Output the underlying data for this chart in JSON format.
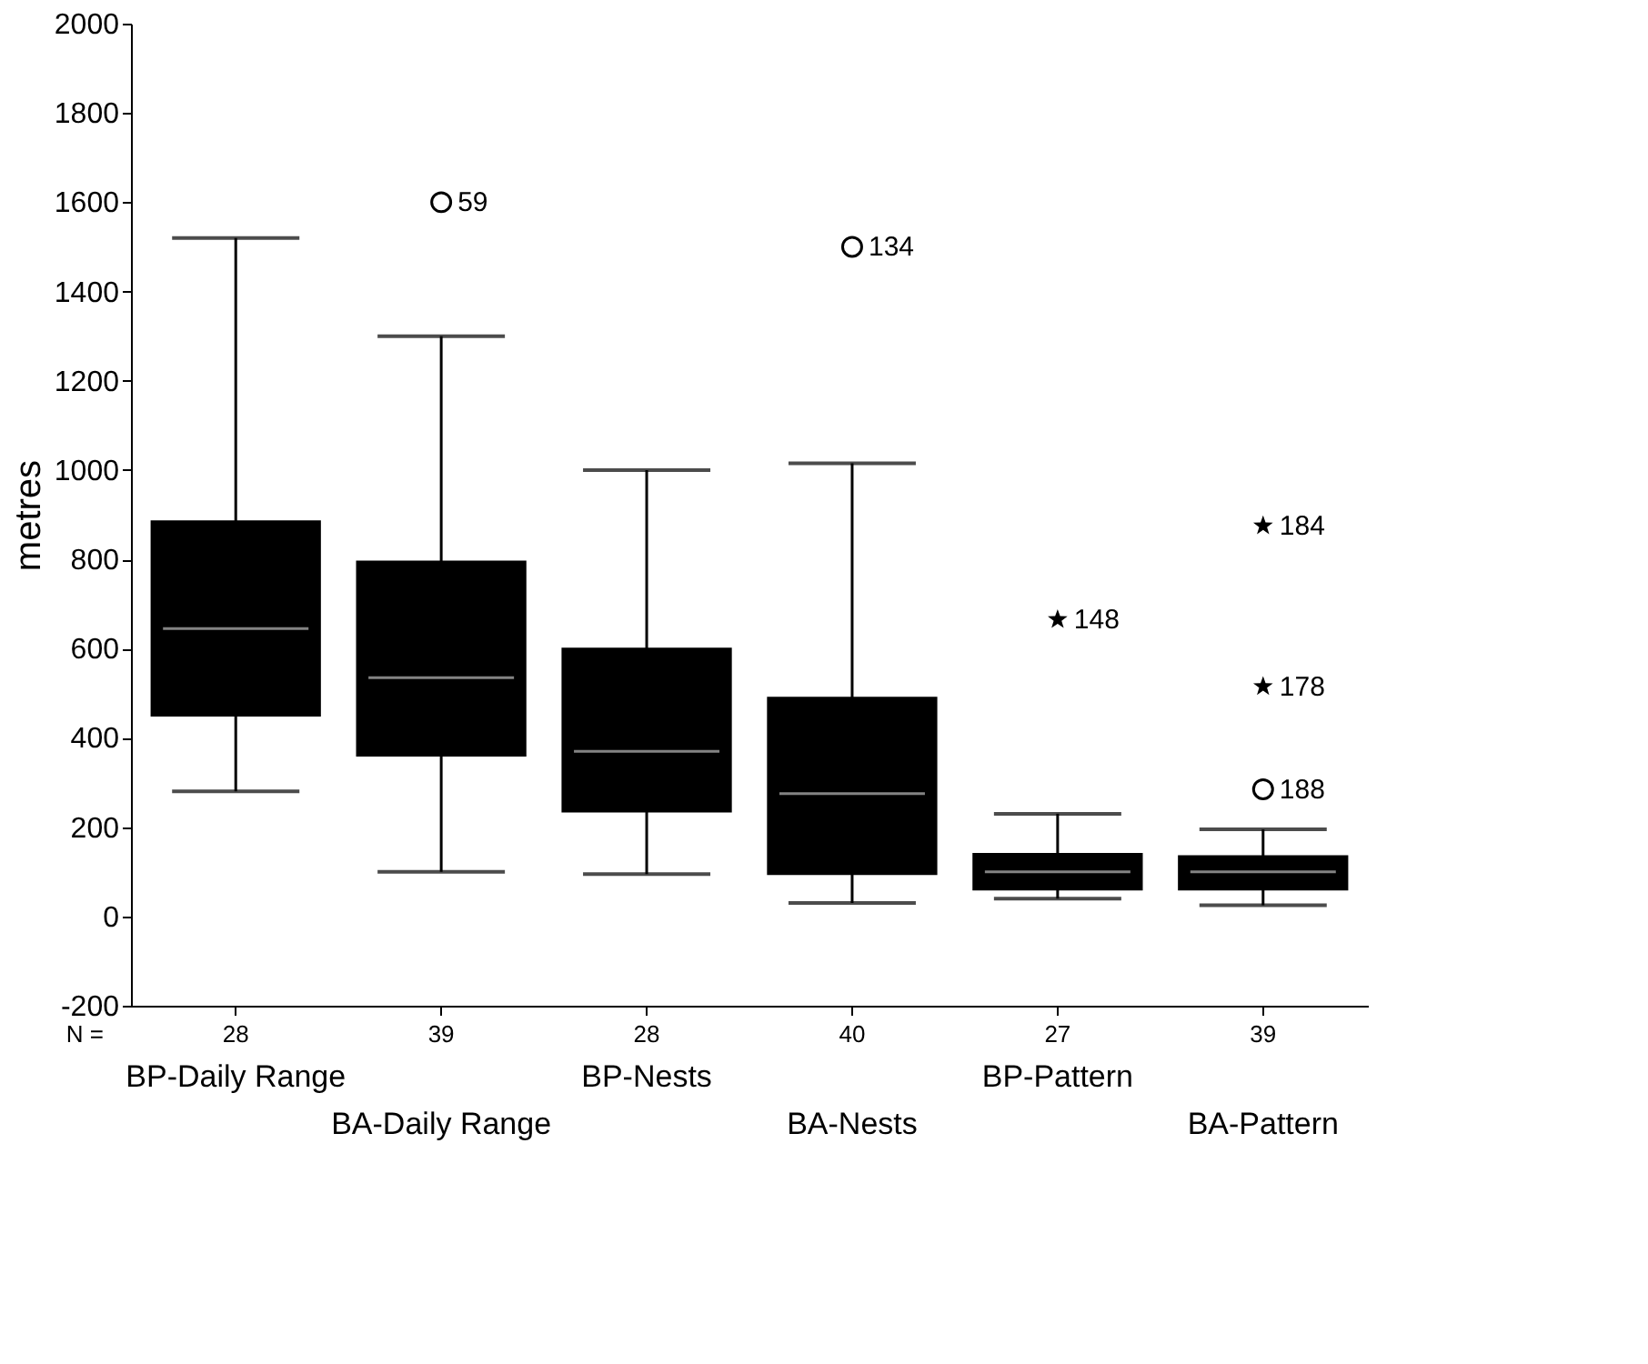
{
  "chart_data": {
    "type": "box",
    "ylabel": "metres",
    "ylim": [
      -200,
      2000
    ],
    "yticks": [
      -200,
      0,
      200,
      400,
      600,
      800,
      1000,
      1200,
      1400,
      1600,
      1800,
      2000
    ],
    "grid": false,
    "categories": [
      "BP-Daily Range",
      "BA-Daily Range",
      "BP-Nests",
      "BA-Nests",
      "BP-Pattern",
      "BA-Pattern"
    ],
    "series": [
      {
        "color": "#000000",
        "boxes": [
          {
            "low": 280,
            "q1": 450,
            "median": 645,
            "q3": 885,
            "high": 1520
          },
          {
            "low": 100,
            "q1": 360,
            "median": 535,
            "q3": 795,
            "high": 1300
          },
          {
            "low": 95,
            "q1": 235,
            "median": 370,
            "q3": 600,
            "high": 1000
          },
          {
            "low": 30,
            "q1": 95,
            "median": 275,
            "q3": 490,
            "high": 1015
          },
          {
            "low": 40,
            "q1": 60,
            "median": 100,
            "q3": 140,
            "high": 230
          },
          {
            "low": 25,
            "q1": 60,
            "median": 100,
            "q3": 135,
            "high": 195
          }
        ]
      },
      {
        "type": "scatter",
        "marker": "circle",
        "color": "#000000",
        "x": [
          "BA-Daily Range",
          "BA-Nests",
          "BA-Pattern"
        ],
        "values": [
          1600,
          1500,
          285
        ]
      },
      {
        "type": "scatter",
        "marker": "star",
        "color": "#000000",
        "x": [
          "BP-Pattern",
          "BA-Pattern",
          "BA-Pattern"
        ],
        "values": [
          665,
          875,
          515
        ]
      }
    ],
    "annotations": [
      {
        "text": "59",
        "x": "BA-Daily Range",
        "y": 1600
      },
      {
        "text": "134",
        "x": "BA-Nests",
        "y": 1500
      },
      {
        "text": "148",
        "x": "BP-Pattern",
        "y": 665
      },
      {
        "text": "184",
        "x": "BA-Pattern",
        "y": 875
      },
      {
        "text": "178",
        "x": "BA-Pattern",
        "y": 515
      },
      {
        "text": "188",
        "x": "BA-Pattern",
        "y": 285
      },
      "N =",
      {
        "text": "28",
        "x": "BP-Daily Range"
      },
      {
        "text": "39",
        "x": "BA-Daily Range"
      },
      {
        "text": "28",
        "x": "BP-Nests"
      },
      {
        "text": "40",
        "x": "BA-Nests"
      },
      {
        "text": "27",
        "x": "BP-Pattern"
      },
      {
        "text": "39",
        "x": "BA-Pattern"
      }
    ]
  }
}
